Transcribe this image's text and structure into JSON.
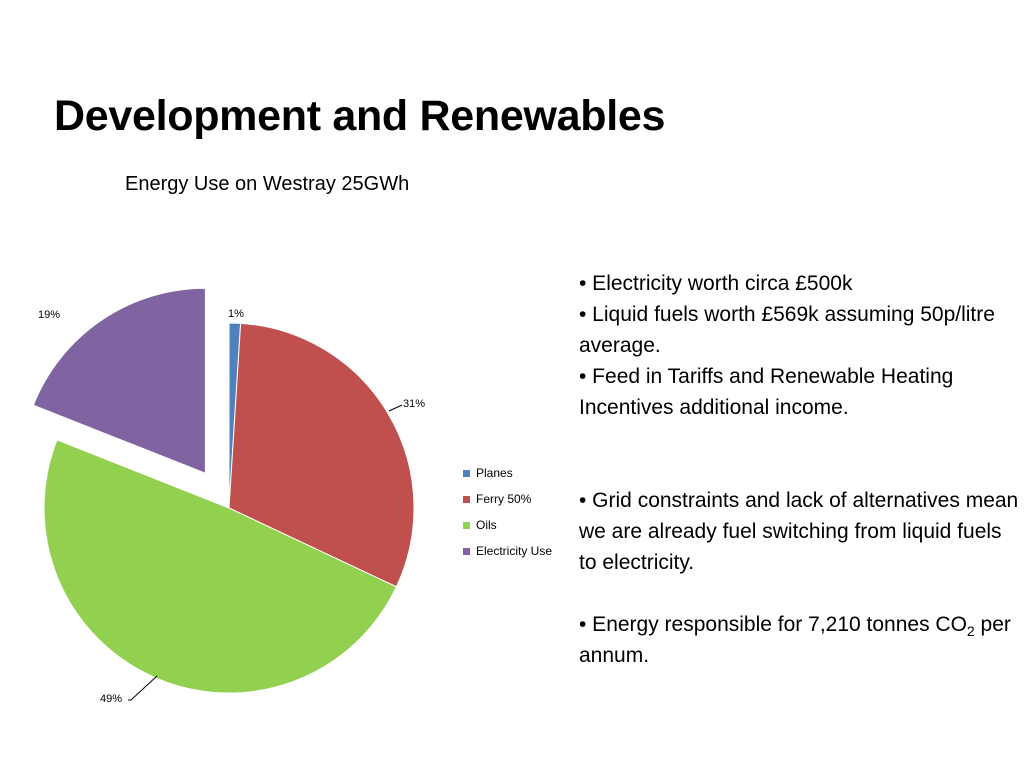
{
  "slide": {
    "title": "Development and Renewables",
    "bullets": [
      "• Electricity worth circa £500k",
      "• Liquid fuels worth £569k assuming 50p/litre average.",
      "• Feed in Tariffs and Renewable Heating Incentives additional income.",
      "• Grid constraints and lack of alternatives mean we are already fuel switching from liquid fuels to electricity.",
      "• Energy responsible for 7,210 tonnes CO",
      "2",
      "per annum."
    ]
  },
  "chart_data": {
    "type": "pie",
    "title": "Energy Use on Westray 25GWh",
    "categories": [
      "Planes",
      "Ferry 50%",
      "Oils",
      "Electricity Use"
    ],
    "values": [
      1,
      31,
      49,
      19
    ],
    "data_labels": [
      "1%",
      "31%",
      "49%",
      "19%"
    ],
    "colors": [
      "#4f81bd",
      "#c0504d",
      "#92d050",
      "#8064a2"
    ],
    "exploded": [
      "Electricity Use"
    ],
    "legend_position": "right"
  }
}
